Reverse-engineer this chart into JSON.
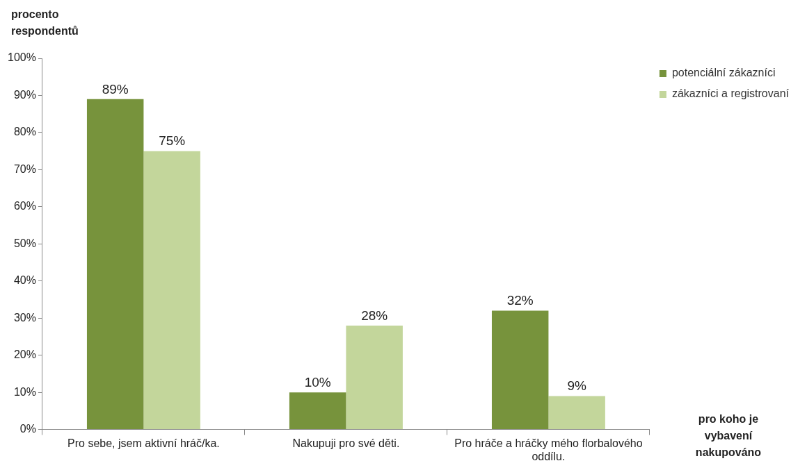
{
  "chart_data": {
    "type": "bar",
    "ylabel": "procento respondentů",
    "xlabel": "pro koho je vybavení nakupováno",
    "categories": [
      "Pro sebe, jsem aktivní hráč/ka.",
      "Nakupuji pro své děti.",
      "Pro hráče a hráčky mého florbalového oddílu."
    ],
    "series": [
      {
        "name": "potenciální zákazníci",
        "color": "#77933c",
        "values": [
          89,
          10,
          32
        ],
        "value_labels": [
          "89%",
          "10%",
          "32%"
        ]
      },
      {
        "name": "zákazníci a registrovaní",
        "color": "#c3d69b",
        "values": [
          75,
          28,
          9
        ],
        "value_labels": [
          "75%",
          "28%",
          "9%"
        ]
      }
    ],
    "ylim": [
      0,
      100
    ],
    "yticks": [
      {
        "value": 0,
        "label": "0%"
      },
      {
        "value": 10,
        "label": "10%"
      },
      {
        "value": 20,
        "label": "20%"
      },
      {
        "value": 30,
        "label": "30%"
      },
      {
        "value": 40,
        "label": "40%"
      },
      {
        "value": 50,
        "label": "50%"
      },
      {
        "value": 60,
        "label": "60%"
      },
      {
        "value": 70,
        "label": "70%"
      },
      {
        "value": 80,
        "label": "80%"
      },
      {
        "value": 90,
        "label": "90%"
      },
      {
        "value": 100,
        "label": "100%"
      }
    ],
    "legend": "top right"
  }
}
